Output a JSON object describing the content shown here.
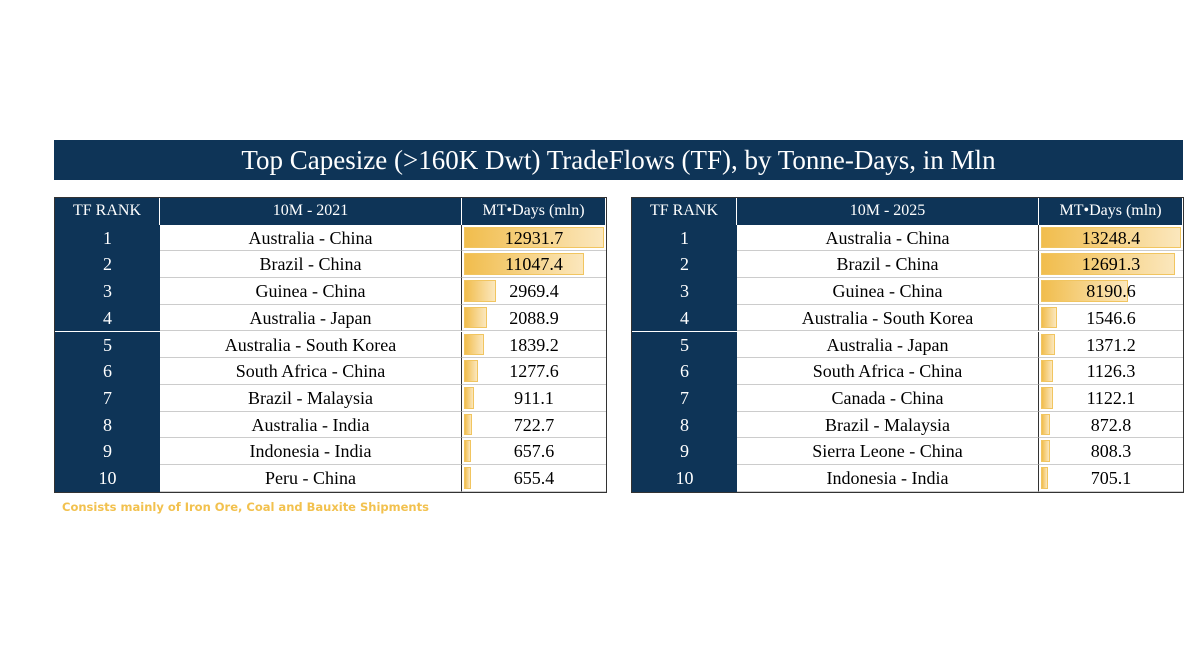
{
  "title": "Top Capesize (>160K Dwt) TradeFlows (TF), by Tonne-Days, in Mln",
  "note": "Consists mainly of Iron Ore, Coal and Bauxite Shipments",
  "tables": [
    {
      "headers": [
        "TF RANK",
        "10M - 2021",
        "MT•Days (mln)"
      ],
      "rows": [
        [
          1,
          "Australia - China",
          12931.7
        ],
        [
          2,
          "Brazil - China",
          11047.4
        ],
        [
          3,
          "Guinea - China",
          2969.4
        ],
        [
          4,
          "Australia - Japan",
          2088.9
        ],
        [
          5,
          "Australia - South Korea",
          1839.2
        ],
        [
          6,
          "South Africa - China",
          1277.6
        ],
        [
          7,
          "Brazil - Malaysia",
          911.1
        ],
        [
          8,
          "Australia - India",
          722.7
        ],
        [
          9,
          "Indonesia - India",
          657.6
        ],
        [
          10,
          "Peru - China",
          655.4
        ]
      ]
    },
    {
      "headers": [
        "TF RANK",
        "10M - 2025",
        "MT•Days (mln)"
      ],
      "rows": [
        [
          1,
          "Australia - China",
          13248.4
        ],
        [
          2,
          "Brazil - China",
          12691.3
        ],
        [
          3,
          "Guinea - China",
          8190.6
        ],
        [
          4,
          "Australia - South Korea",
          1546.6
        ],
        [
          5,
          "Australia - Japan",
          1371.2
        ],
        [
          6,
          "South Africa - China",
          1126.3
        ],
        [
          7,
          "Canada - China",
          1122.1
        ],
        [
          8,
          "Brazil - Malaysia",
          872.8
        ],
        [
          9,
          "Sierra Leone - China",
          808.3
        ],
        [
          10,
          "Indonesia - India",
          705.1
        ]
      ]
    }
  ]
}
